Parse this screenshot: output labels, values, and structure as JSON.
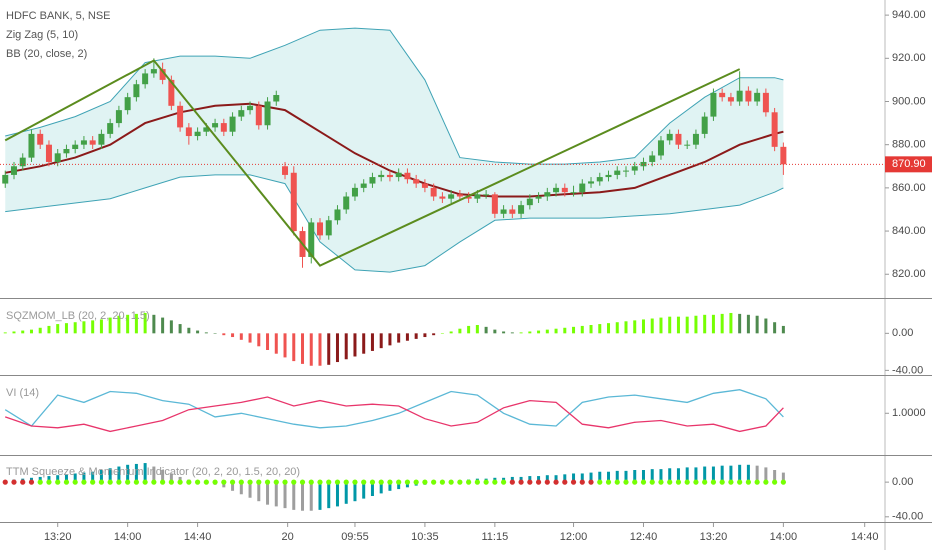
{
  "chart_data": [
    {
      "type": "candlestick",
      "title": "HDFC BANK, 5, NSE",
      "studies": [
        "Zig Zag (5, 10)",
        "BB (20, close, 2)"
      ],
      "ylim": [
        809,
        947
      ],
      "yticks": [
        {
          "value": 820,
          "label": "820.00"
        },
        {
          "value": 840,
          "label": "840.00"
        },
        {
          "value": 860,
          "label": "860.00"
        },
        {
          "value": 880,
          "label": "880.00"
        },
        {
          "value": 900,
          "label": "900.00"
        },
        {
          "value": 920,
          "label": "920.00"
        },
        {
          "value": 940,
          "label": "940.00"
        }
      ],
      "xlim": [
        -0.6,
        106
      ],
      "xticks": [
        {
          "value": 6,
          "label": "13:20"
        },
        {
          "value": 14,
          "label": "14:00"
        },
        {
          "value": 22,
          "label": "14:40"
        },
        {
          "value": 32.3,
          "label": "20"
        },
        {
          "value": 40,
          "label": "09:55"
        },
        {
          "value": 48,
          "label": "10:35"
        },
        {
          "value": 56,
          "label": "11:15"
        },
        {
          "value": 65,
          "label": "12:00"
        },
        {
          "value": 73,
          "label": "12:40"
        },
        {
          "value": 81,
          "label": "13:20"
        },
        {
          "value": 89,
          "label": "14:00"
        },
        {
          "value": 98.3,
          "label": "14:40"
        }
      ],
      "up_color": "#43a047",
      "down_color": "#ef5350",
      "ohlc": [
        [
          862,
          868,
          860,
          866
        ],
        [
          866,
          872,
          864,
          870
        ],
        [
          870,
          876,
          868,
          874
        ],
        [
          874,
          887,
          872,
          885
        ],
        [
          885,
          887,
          878,
          880
        ],
        [
          880,
          882,
          870,
          872
        ],
        [
          872,
          878,
          870,
          876
        ],
        [
          876,
          880,
          874,
          878
        ],
        [
          878,
          882,
          876,
          880
        ],
        [
          880,
          884,
          878,
          882
        ],
        [
          882,
          884,
          878,
          880
        ],
        [
          880,
          887,
          878,
          885
        ],
        [
          885,
          892,
          883,
          890
        ],
        [
          890,
          898,
          888,
          896
        ],
        [
          896,
          904,
          894,
          902
        ],
        [
          902,
          910,
          900,
          908
        ],
        [
          908,
          915,
          906,
          913
        ],
        [
          913,
          920,
          911,
          915
        ],
        [
          915,
          918,
          908,
          910
        ],
        [
          910,
          912,
          896,
          898
        ],
        [
          898,
          900,
          886,
          888
        ],
        [
          888,
          890,
          880,
          884
        ],
        [
          884,
          888,
          882,
          886
        ],
        [
          886,
          890,
          884,
          888
        ],
        [
          888,
          892,
          886,
          890
        ],
        [
          890,
          892,
          884,
          886
        ],
        [
          886,
          895,
          884,
          893
        ],
        [
          893,
          898,
          891,
          896
        ],
        [
          896,
          900,
          894,
          898
        ],
        [
          898,
          900,
          887,
          889
        ],
        [
          889,
          902,
          887,
          900
        ],
        [
          900,
          905,
          898,
          903
        ],
        [
          870,
          872,
          864,
          866
        ],
        [
          867,
          870,
          838,
          840
        ],
        [
          840,
          842,
          823,
          828
        ],
        [
          828,
          846,
          825,
          844
        ],
        [
          844,
          846,
          836,
          838
        ],
        [
          838,
          847,
          836,
          845
        ],
        [
          845,
          852,
          843,
          850
        ],
        [
          850,
          858,
          848,
          856
        ],
        [
          856,
          862,
          854,
          860
        ],
        [
          860,
          864,
          858,
          862
        ],
        [
          862,
          867,
          860,
          865
        ],
        [
          865,
          868,
          863,
          866
        ],
        [
          866,
          868,
          863,
          865
        ],
        [
          865,
          869,
          863,
          867
        ],
        [
          867,
          869,
          862,
          864
        ],
        [
          864,
          866,
          860,
          862
        ],
        [
          862,
          864,
          858,
          860
        ],
        [
          860,
          862,
          854,
          856
        ],
        [
          856,
          858,
          853,
          855
        ],
        [
          855,
          859,
          853,
          857
        ],
        [
          857,
          859,
          854,
          856
        ],
        [
          856,
          858,
          853,
          855
        ],
        [
          855,
          859,
          853,
          857
        ],
        [
          857,
          859,
          855,
          857
        ],
        [
          857,
          858,
          846,
          848
        ],
        [
          848,
          852,
          846,
          850
        ],
        [
          850,
          852,
          846,
          848
        ],
        [
          848,
          854,
          846,
          852
        ],
        [
          852,
          857,
          850,
          855
        ],
        [
          855,
          858,
          853,
          856
        ],
        [
          856,
          860,
          854,
          858
        ],
        [
          858,
          862,
          856,
          860
        ],
        [
          860,
          862,
          856,
          858
        ],
        [
          858,
          861,
          856,
          858
        ],
        [
          858,
          864,
          856,
          862
        ],
        [
          862,
          865,
          860,
          863
        ],
        [
          863,
          867,
          861,
          865
        ],
        [
          865,
          868,
          863,
          866
        ],
        [
          866,
          870,
          864,
          868
        ],
        [
          868,
          870,
          865,
          868
        ],
        [
          868,
          872,
          866,
          870
        ],
        [
          870,
          874,
          868,
          872
        ],
        [
          872,
          877,
          870,
          875
        ],
        [
          875,
          884,
          873,
          882
        ],
        [
          882,
          887,
          880,
          885
        ],
        [
          885,
          887,
          878,
          880
        ],
        [
          880,
          882,
          878,
          880
        ],
        [
          880,
          887,
          878,
          885
        ],
        [
          885,
          895,
          883,
          893
        ],
        [
          893,
          906,
          891,
          904
        ],
        [
          904,
          906,
          900,
          902
        ],
        [
          902,
          904,
          898,
          900
        ],
        [
          900,
          914,
          898,
          905
        ],
        [
          905,
          907,
          898,
          900
        ],
        [
          900,
          906,
          898,
          904
        ],
        [
          904,
          906,
          893,
          895
        ],
        [
          895,
          897,
          877,
          879
        ],
        [
          879,
          881,
          866,
          870.9
        ]
      ],
      "bb": {
        "x": [
          0,
          4,
          8,
          12,
          16,
          20,
          24,
          28,
          32,
          36,
          40,
          44,
          48,
          52,
          56,
          60,
          64,
          68,
          72,
          76,
          80,
          84,
          88,
          89
        ],
        "upper": [
          884,
          888,
          893,
          900,
          918,
          921,
          921,
          920,
          926,
          933,
          934,
          933,
          910,
          874,
          872,
          871,
          871,
          872,
          874,
          890,
          902,
          911,
          911,
          910
        ],
        "middle": [
          867,
          870,
          874,
          880,
          890,
          895,
          898,
          899,
          896,
          886,
          876,
          868,
          862,
          857,
          856,
          856,
          857,
          858,
          860,
          866,
          872,
          880,
          885,
          886
        ],
        "lower": [
          849,
          851,
          853,
          855,
          860,
          865,
          866,
          866,
          862,
          835,
          822,
          821,
          824,
          835,
          845,
          846,
          846,
          846,
          847,
          848,
          850,
          852,
          858,
          860
        ],
        "upper_color": "#3fa3b5",
        "middle_color": "#8b1a1a",
        "fill": "#e0f3f3"
      },
      "zigzag": {
        "x": [
          0,
          17,
          36,
          84
        ],
        "values": [
          882,
          919,
          824,
          915
        ],
        "color": "#5b8c1e"
      },
      "last_price": {
        "value": 870.9,
        "label": "870.90"
      },
      "last_color": "#e53935"
    },
    {
      "type": "bar",
      "title": "SQZMOM_LB (20, 2, 20, 1.5)",
      "ylim": [
        -45,
        36
      ],
      "yticks": [
        {
          "value": 0,
          "label": "0.00"
        },
        {
          "value": -40,
          "label": "-40.00"
        }
      ],
      "colors": {
        "pos_up": "#76ff03",
        "pos_down": "#4e8a4e",
        "neg_down": "#ef5350",
        "neg_up": "#8b1a1a"
      },
      "values": [
        1,
        2,
        3,
        4,
        6,
        8,
        10,
        11,
        12,
        13,
        14,
        15,
        17,
        19,
        20,
        21,
        22,
        20,
        17,
        14,
        10,
        6,
        3,
        1,
        0,
        -2,
        -4,
        -7,
        -10,
        -14,
        -18,
        -22,
        -26,
        -30,
        -33,
        -35,
        -35,
        -34,
        -31,
        -28,
        -25,
        -22,
        -19,
        -16,
        -13,
        -10,
        -8,
        -6,
        -4,
        -2,
        0,
        2,
        5,
        8,
        9,
        7,
        4,
        2,
        1,
        1,
        2,
        3,
        4,
        5,
        6,
        7,
        8,
        9,
        10,
        11,
        12,
        13,
        14,
        15,
        16,
        17,
        18,
        18,
        18,
        19,
        20,
        20,
        21,
        22,
        21,
        20,
        19,
        16,
        12,
        8
      ]
    },
    {
      "type": "line",
      "title": "VI (14)",
      "ylim": [
        0.77,
        1.2
      ],
      "yticks": [
        {
          "value": 1,
          "label": "1.0000"
        }
      ],
      "x": [
        0,
        3,
        6,
        9,
        12,
        15,
        18,
        21,
        24,
        27,
        30,
        33,
        36,
        39,
        42,
        45,
        48,
        51,
        54,
        57,
        60,
        63,
        66,
        69,
        72,
        75,
        78,
        81,
        84,
        87,
        89
      ],
      "series": [
        {
          "color": "#5bb8d6",
          "values": [
            1.02,
            0.93,
            1.1,
            1.06,
            1.12,
            1.11,
            1.07,
            1.05,
            0.98,
            1.0,
            0.97,
            0.94,
            0.92,
            0.93,
            0.96,
            1.0,
            1.06,
            1.12,
            1.1,
            1.0,
            0.94,
            0.93,
            1.06,
            1.09,
            1.1,
            1.08,
            1.06,
            1.11,
            1.13,
            1.08,
            0.98
          ]
        },
        {
          "color": "#e8356b",
          "values": [
            0.98,
            0.93,
            0.92,
            0.94,
            0.9,
            0.93,
            0.96,
            1.02,
            1.04,
            1.06,
            1.09,
            1.04,
            1.07,
            1.04,
            1.05,
            1.04,
            0.97,
            0.93,
            0.95,
            1.03,
            1.07,
            1.06,
            0.94,
            0.92,
            0.95,
            0.96,
            0.93,
            0.94,
            0.9,
            0.93,
            1.03
          ]
        }
      ]
    },
    {
      "type": "bar",
      "title": "TTM Squeeze & Momentum Indicator (20, 2, 20, 1.5, 20, 20)",
      "ylim": [
        -46,
        29
      ],
      "yticks": [
        {
          "value": 0,
          "label": "0.00"
        },
        {
          "value": -40,
          "label": "-40.00"
        }
      ],
      "colors": {
        "pos_up": "#0097a7",
        "pos_down": "#9e9e9e",
        "neg_down": "#9e9e9e",
        "neg_up": "#0097a7"
      },
      "squeeze_ranges": [
        [
          0,
          3
        ],
        [
          58,
          67
        ]
      ],
      "dot_on": "#d32f2f",
      "dot_off": "#76ff03",
      "values": [
        2,
        3,
        4,
        5,
        6,
        7,
        8,
        9,
        10,
        11,
        12,
        14,
        16,
        18,
        20,
        21,
        22,
        18,
        14,
        10,
        6,
        3,
        1,
        -1,
        -3,
        -6,
        -10,
        -14,
        -18,
        -22,
        -26,
        -28,
        -30,
        -32,
        -33,
        -33,
        -32,
        -30,
        -28,
        -25,
        -22,
        -19,
        -16,
        -13,
        -10,
        -8,
        -6,
        -4,
        -3,
        -2,
        -1,
        1,
        2,
        3,
        4,
        4,
        5,
        5,
        6,
        6,
        7,
        7,
        8,
        8,
        9,
        10,
        10,
        11,
        12,
        12,
        13,
        13,
        14,
        14,
        15,
        15,
        16,
        16,
        17,
        17,
        18,
        18,
        19,
        19,
        20,
        20,
        19,
        17,
        14,
        11
      ]
    }
  ]
}
